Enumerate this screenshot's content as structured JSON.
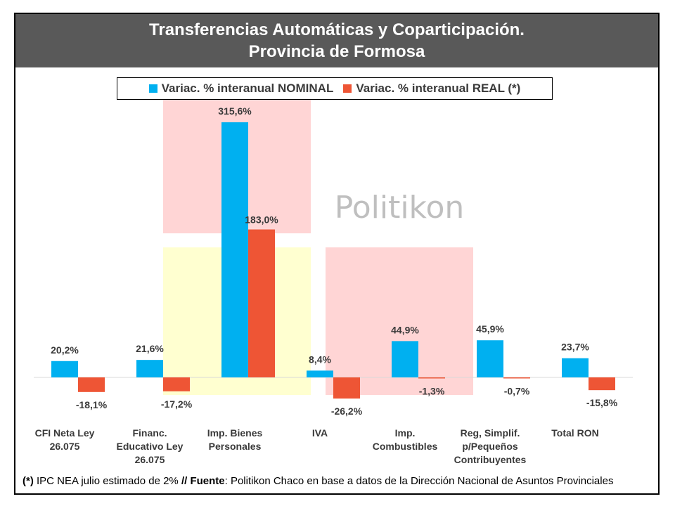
{
  "title_lines": [
    "Transferencias Automáticas y Coparticipación.",
    "Provincia de Formosa"
  ],
  "watermark": "Politikon",
  "footnote": {
    "mark": "(*)",
    "text1": " IPC NEA julio estimado de 2% ",
    "sep": "//",
    "source_label": " Fuente",
    "text2": ": Politikon Chaco en base a datos de la Dirección Nacional de Asuntos Provinciales"
  },
  "colors": {
    "nominal": "#00B0F0",
    "real": "#EE5535",
    "title_bg": "#595959",
    "logo_red": "#FFD5D5",
    "logo_yellow": "#FFFFD0"
  },
  "chart_data": {
    "type": "bar",
    "categories": [
      [
        "CFI Neta Ley",
        "26.075"
      ],
      [
        "Financ.",
        "Educativo Ley",
        "26.075"
      ],
      [
        "Imp. Bienes",
        "Personales"
      ],
      [
        "IVA"
      ],
      [
        "Imp.",
        "Combustibles"
      ],
      [
        "Reg, Simplif.",
        "p/Pequeños",
        "Contribuyentes"
      ],
      [
        "Total RON"
      ]
    ],
    "series": [
      {
        "name": "Variac. % interanual NOMINAL",
        "values": [
          20.2,
          21.6,
          315.6,
          8.4,
          44.9,
          45.9,
          23.7
        ],
        "labels": [
          "20,2%",
          "21,6%",
          "315,6%",
          "8,4%",
          "44,9%",
          "45,9%",
          "23,7%"
        ]
      },
      {
        "name": "Variac. % interanual REAL (*)",
        "values": [
          -18.1,
          -17.2,
          183.0,
          -26.2,
          -1.3,
          -0.7,
          -15.8
        ],
        "labels": [
          "-18,1%",
          "-17,2%",
          "183,0%",
          "-26,2%",
          "-1,3%",
          "-0,7%",
          "-15,8%"
        ]
      }
    ],
    "grid": false,
    "legend_position": "top"
  }
}
